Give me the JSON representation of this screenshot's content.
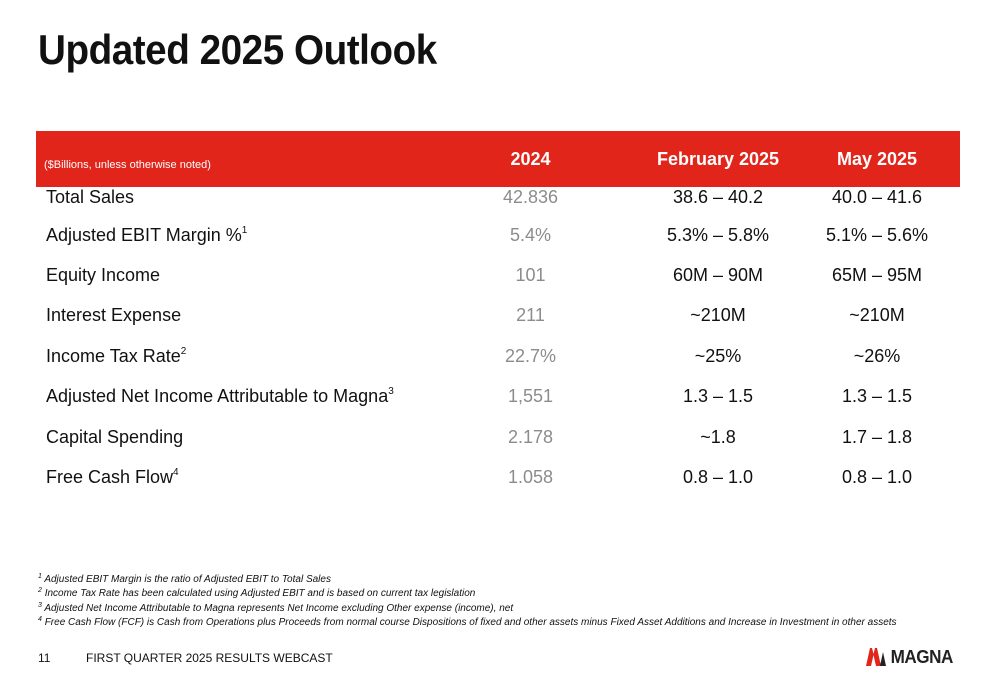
{
  "title": "Updated 2025 Outlook",
  "table": {
    "units_note": "($Billions, unless otherwise noted)",
    "columns": [
      "2024",
      "February 2025",
      "May 2025"
    ],
    "rows": [
      {
        "label": "Total Sales",
        "sup": "",
        "v2024": "42.836",
        "feb": "38.6 – 40.2",
        "may": "40.0 – 41.6"
      },
      {
        "label": "Adjusted EBIT Margin %",
        "sup": "1",
        "v2024": "5.4%",
        "feb": "5.3% – 5.8%",
        "may": "5.1% – 5.6%"
      },
      {
        "label": "Equity Income",
        "sup": "",
        "v2024": "101",
        "feb": "60M – 90M",
        "may": "65M – 95M"
      },
      {
        "label": "Interest Expense",
        "sup": "",
        "v2024": "211",
        "feb": "~210M",
        "may": "~210M"
      },
      {
        "label": "Income Tax Rate",
        "sup": "2",
        "v2024": "22.7%",
        "feb": "~25%",
        "may": "~26%"
      },
      {
        "label": "Adjusted Net Income Attributable to Magna",
        "sup": "3",
        "v2024": "1,551",
        "feb": "1.3 – 1.5",
        "may": "1.3 – 1.5"
      },
      {
        "label": "Capital Spending",
        "sup": "",
        "v2024": "2.178",
        "feb": "~1.8",
        "may": "1.7 – 1.8"
      },
      {
        "label": "Free Cash Flow",
        "sup": "4",
        "v2024": "1.058",
        "feb": "0.8 – 1.0",
        "may": "0.8 – 1.0"
      }
    ]
  },
  "footnotes": [
    {
      "num": "1",
      "text": "Adjusted EBIT Margin is the ratio of Adjusted EBIT to Total Sales"
    },
    {
      "num": "2",
      "text": "Income Tax Rate has been calculated using Adjusted EBIT and is based on current tax legislation"
    },
    {
      "num": "3",
      "text": "Adjusted Net Income Attributable to Magna represents Net Income excluding Other expense (income), net"
    },
    {
      "num": "4",
      "text": "Free Cash Flow (FCF) is Cash from Operations plus Proceeds from normal course Dispositions of fixed and other assets minus Fixed Asset Additions and Increase in Investment in other assets"
    }
  ],
  "footer": {
    "page_number": "11",
    "event": "FIRST QUARTER 2025 RESULTS WEBCAST"
  },
  "logo": {
    "text": "MAGNA",
    "icon": "magna-logo-icon"
  },
  "colors": {
    "accent": "#e1251b",
    "historical_text": "#8c8c8c"
  }
}
